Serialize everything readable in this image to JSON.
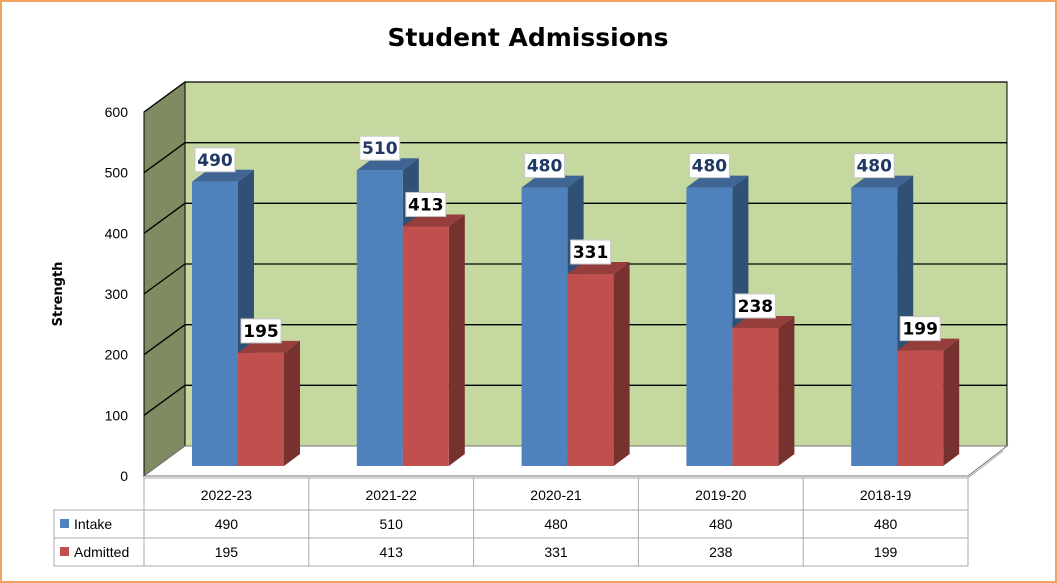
{
  "chart_data": {
    "type": "bar",
    "title": "Student Admissions",
    "xlabel": "",
    "ylabel": "Strength",
    "ylim": [
      0,
      600
    ],
    "yticks": [
      0,
      100,
      200,
      300,
      400,
      500,
      600
    ],
    "categories": [
      "2022-23",
      "2021-22",
      "2020-21",
      "2019-20",
      "2018-19"
    ],
    "series": [
      {
        "name": "Intake",
        "values": [
          490,
          510,
          480,
          480,
          480
        ],
        "color": "#4f81bd"
      },
      {
        "name": "Admitted",
        "values": [
          195,
          413,
          331,
          238,
          199
        ],
        "color": "#c0504d"
      }
    ],
    "grid": true,
    "legend": "data-table-left",
    "data_table": true,
    "plot_back_color": "#c4d89f",
    "side_wall_color": "#7f8c62"
  }
}
